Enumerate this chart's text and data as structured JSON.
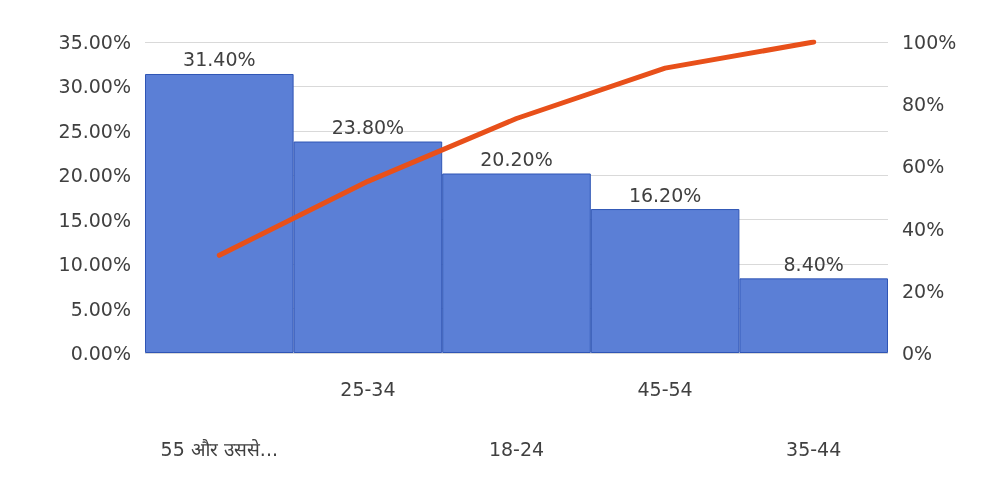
{
  "chart_data": {
    "type": "bar",
    "categories": [
      "55 और उससे...",
      "25-34",
      "18-24",
      "45-54",
      "35-44"
    ],
    "series": [
      {
        "color": "#5b7fd6",
        "values": [
          31.4,
          23.8,
          20.2,
          16.2,
          8.4
        ],
        "value_labels": [
          "31.40%",
          "23.80%",
          "20.20%",
          "16.20%",
          "8.40%"
        ]
      },
      {
        "type": "line",
        "axis": "y2",
        "color": "#e8501a",
        "values": [
          31.4,
          55.2,
          75.4,
          91.6,
          100
        ]
      }
    ],
    "ylim": [
      0,
      35
    ],
    "yticks": [
      {
        "value": 0,
        "label": "0.00%"
      },
      {
        "value": 5,
        "label": "5.00%"
      },
      {
        "value": 10,
        "label": "10.00%"
      },
      {
        "value": 15,
        "label": "15.00%"
      },
      {
        "value": 20,
        "label": "20.00%"
      },
      {
        "value": 25,
        "label": "25.00%"
      },
      {
        "value": 30,
        "label": "30.00%"
      },
      {
        "value": 35,
        "label": "35.00%"
      }
    ],
    "y2lim": [
      0,
      100
    ],
    "y2ticks": [
      {
        "value": 0,
        "label": "0%"
      },
      {
        "value": 20,
        "label": "20%"
      },
      {
        "value": 40,
        "label": "40%"
      },
      {
        "value": 60,
        "label": "60%"
      },
      {
        "value": 80,
        "label": "80%"
      },
      {
        "value": 100,
        "label": "100%"
      }
    ],
    "grid": "y",
    "marker": "none",
    "line_style": "solid"
  }
}
